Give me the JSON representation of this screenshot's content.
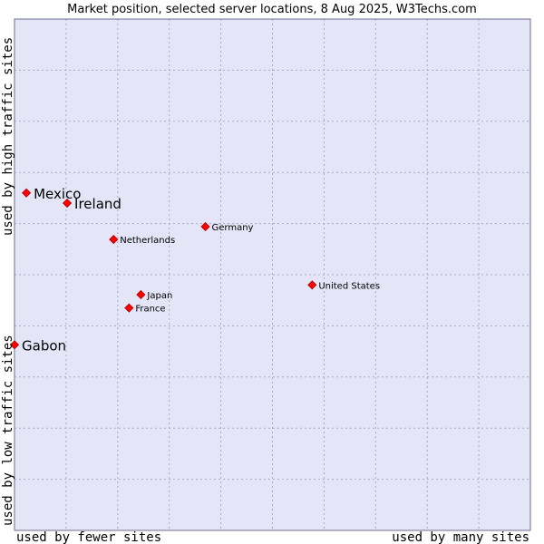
{
  "chart_data": {
    "type": "scatter",
    "title": "Market position, selected server locations, 8 Aug 2025, W3Techs.com",
    "xlabel_left": "used by fewer sites",
    "xlabel_right": "used by many sites",
    "ylabel_bottom": "used by low traffic sites",
    "ylabel_top": "used by high traffic sites",
    "xlim": [
      0,
      100
    ],
    "ylim": [
      0,
      100
    ],
    "grid": true,
    "colors": {
      "plot_background": "#e4e6f8",
      "grid": "#a9a9c6",
      "marker": "#ff0000",
      "marker_outline": "#aa0000"
    },
    "points": [
      {
        "label": "Mexico",
        "x": 2.3,
        "y": 66.0,
        "emphasis": true
      },
      {
        "label": "Ireland",
        "x": 10.2,
        "y": 64.0,
        "emphasis": true
      },
      {
        "label": "Gabon",
        "x": 0.0,
        "y": 36.3,
        "emphasis": true
      },
      {
        "label": "Germany",
        "x": 37.0,
        "y": 59.4,
        "emphasis": false
      },
      {
        "label": "Netherlands",
        "x": 19.2,
        "y": 56.9,
        "emphasis": false
      },
      {
        "label": "United States",
        "x": 57.7,
        "y": 48.0,
        "emphasis": false
      },
      {
        "label": "Japan",
        "x": 24.5,
        "y": 46.1,
        "emphasis": false
      },
      {
        "label": "France",
        "x": 22.2,
        "y": 43.5,
        "emphasis": false
      }
    ]
  }
}
